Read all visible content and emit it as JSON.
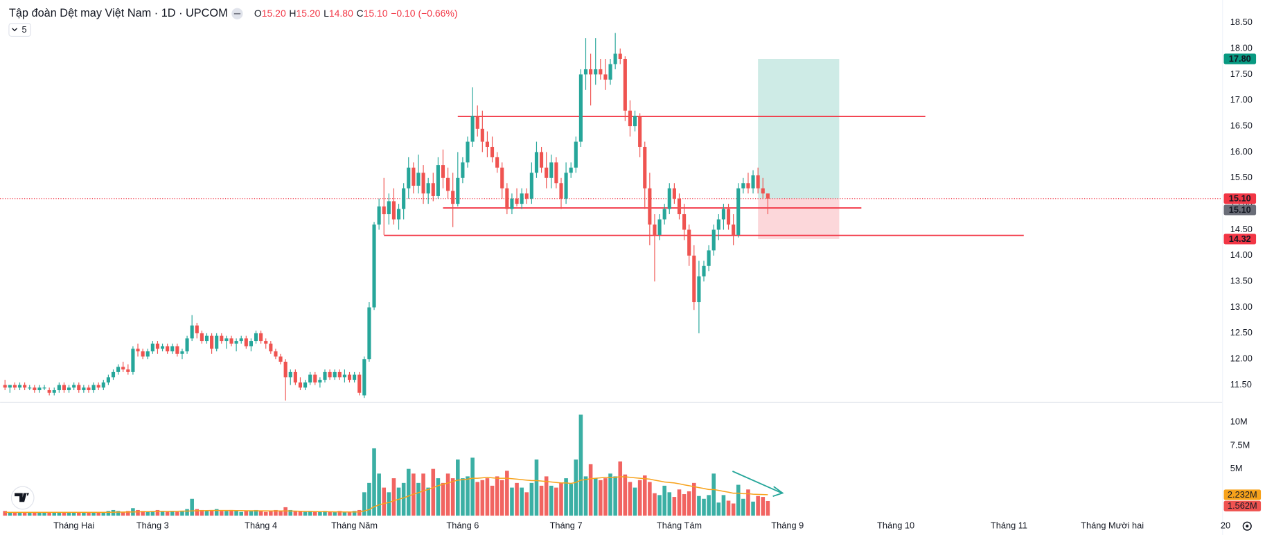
{
  "chart_data": {
    "type": "candlestick",
    "title": "Tập đoàn Dệt may Việt Nam · 1D · UPCOM",
    "ohlc_legend": [
      [
        "O",
        "15.20"
      ],
      [
        "H",
        "15.20"
      ],
      [
        "L",
        "14.80"
      ],
      [
        "C",
        "15.10"
      ]
    ],
    "change_label": "−0.10 (−0.66%)",
    "indicator_count": "5",
    "up_color": "#26a69a",
    "down_color": "#ef5350",
    "ma_color": "#f7a21b",
    "grid": false,
    "xlim": [
      -1,
      256
    ],
    "xticks": [
      {
        "value": 14,
        "label": "Tháng Hai"
      },
      {
        "value": 30,
        "label": "Tháng 3"
      },
      {
        "value": 52,
        "label": "Tháng 4"
      },
      {
        "value": 71,
        "label": "Tháng Năm"
      },
      {
        "value": 93,
        "label": "Tháng 6"
      },
      {
        "value": 114,
        "label": "Tháng 7"
      },
      {
        "value": 137,
        "label": "Tháng Tám"
      },
      {
        "value": 159,
        "label": "Tháng 9"
      },
      {
        "value": 181,
        "label": "Tháng 10"
      },
      {
        "value": 204,
        "label": "Tháng 11"
      },
      {
        "value": 225,
        "label": "Tháng Mười hai"
      },
      {
        "value": 248,
        "label": "20"
      }
    ],
    "ylim": [
      11.19,
      18.86
    ],
    "yticks": [
      {
        "value": 11.5,
        "label": "11.50"
      },
      {
        "value": 12,
        "label": "12.00"
      },
      {
        "value": 12.5,
        "label": "12.50"
      },
      {
        "value": 13,
        "label": "13.00"
      },
      {
        "value": 13.5,
        "label": "13.50"
      },
      {
        "value": 14,
        "label": "14.00"
      },
      {
        "value": 14.5,
        "label": "14.50"
      },
      {
        "value": 15,
        "label": "15.00"
      },
      {
        "value": 15.5,
        "label": "15.50"
      },
      {
        "value": 16,
        "label": "16.00"
      },
      {
        "value": 16.5,
        "label": "16.50"
      },
      {
        "value": 17,
        "label": "17.00"
      },
      {
        "value": 17.5,
        "label": "17.50"
      },
      {
        "value": 18,
        "label": "18.00"
      },
      {
        "value": 18.5,
        "label": "18.50"
      }
    ],
    "vlim": [
      0,
      12
    ],
    "vticks": [
      {
        "value": 5,
        "label": "5M"
      },
      {
        "value": 7.5,
        "label": "7.5M"
      },
      {
        "value": 10,
        "label": "10M"
      }
    ],
    "price_labels": [
      {
        "value": 17.8,
        "label": "17.80",
        "color": "#089981"
      },
      {
        "value": 15.1,
        "label": "15.10",
        "color": "#f23645"
      },
      {
        "value": 15.1,
        "label": "15.10",
        "color": "#6a6d78"
      },
      {
        "value": 14.32,
        "label": "14.32",
        "color": "#f23645"
      }
    ],
    "volume_label": "1.562M",
    "volume_ma_label": "2.232M",
    "levels": [
      {
        "price": 16.69,
        "from": 92,
        "to": 187
      },
      {
        "price": 14.92,
        "from": 89,
        "to": 174
      },
      {
        "price": 14.39,
        "from": 77,
        "to": 207
      }
    ],
    "position": {
      "from": 153,
      "to": 169.5,
      "target": 17.8,
      "entry": 15.1,
      "stop": 14.32
    },
    "candles": [
      [
        11.5,
        11.6,
        11.4,
        11.45
      ],
      [
        11.45,
        11.5,
        11.35,
        11.5
      ],
      [
        11.5,
        11.55,
        11.4,
        11.45
      ],
      [
        11.45,
        11.55,
        11.4,
        11.5
      ],
      [
        11.5,
        11.55,
        11.4,
        11.45
      ],
      [
        11.45,
        11.5,
        11.4,
        11.45
      ],
      [
        11.45,
        11.5,
        11.35,
        11.4
      ],
      [
        11.4,
        11.5,
        11.35,
        11.45
      ],
      [
        11.45,
        11.5,
        11.4,
        11.45
      ],
      [
        11.4,
        11.45,
        11.3,
        11.35
      ],
      [
        11.35,
        11.45,
        11.3,
        11.4
      ],
      [
        11.4,
        11.55,
        11.35,
        11.5
      ],
      [
        11.5,
        11.55,
        11.35,
        11.4
      ],
      [
        11.4,
        11.5,
        11.35,
        11.45
      ],
      [
        11.45,
        11.55,
        11.4,
        11.5
      ],
      [
        11.5,
        11.55,
        11.35,
        11.4
      ],
      [
        11.4,
        11.5,
        11.35,
        11.45
      ],
      [
        11.45,
        11.5,
        11.35,
        11.4
      ],
      [
        11.4,
        11.55,
        11.35,
        11.5
      ],
      [
        11.5,
        11.55,
        11.4,
        11.45
      ],
      [
        11.45,
        11.6,
        11.4,
        11.55
      ],
      [
        11.55,
        11.7,
        11.5,
        11.65
      ],
      [
        11.65,
        11.8,
        11.6,
        11.75
      ],
      [
        11.75,
        11.9,
        11.7,
        11.85
      ],
      [
        11.85,
        11.95,
        11.75,
        11.8
      ],
      [
        11.8,
        11.9,
        11.7,
        11.75
      ],
      [
        11.75,
        12.25,
        11.7,
        12.2
      ],
      [
        12.2,
        12.3,
        12.05,
        12.15
      ],
      [
        12.15,
        12.2,
        12.0,
        12.05
      ],
      [
        12.05,
        12.2,
        12.0,
        12.15
      ],
      [
        12.15,
        12.35,
        12.1,
        12.3
      ],
      [
        12.3,
        12.35,
        12.1,
        12.2
      ],
      [
        12.2,
        12.3,
        12.15,
        12.25
      ],
      [
        12.25,
        12.3,
        12.1,
        12.15
      ],
      [
        12.15,
        12.3,
        12.1,
        12.25
      ],
      [
        12.25,
        12.3,
        12.05,
        12.1
      ],
      [
        12.1,
        12.2,
        12.0,
        12.15
      ],
      [
        12.15,
        12.45,
        12.1,
        12.4
      ],
      [
        12.4,
        12.85,
        12.35,
        12.65
      ],
      [
        12.65,
        12.7,
        12.4,
        12.5
      ],
      [
        12.5,
        12.55,
        12.3,
        12.35
      ],
      [
        12.35,
        12.5,
        12.3,
        12.45
      ],
      [
        12.45,
        12.5,
        12.1,
        12.2
      ],
      [
        12.2,
        12.5,
        12.15,
        12.45
      ],
      [
        12.45,
        12.5,
        12.3,
        12.35
      ],
      [
        12.35,
        12.45,
        12.2,
        12.4
      ],
      [
        12.4,
        12.45,
        12.25,
        12.3
      ],
      [
        12.3,
        12.4,
        12.15,
        12.35
      ],
      [
        12.35,
        12.45,
        12.3,
        12.4
      ],
      [
        12.4,
        12.45,
        12.2,
        12.25
      ],
      [
        12.25,
        12.4,
        12.15,
        12.35
      ],
      [
        12.35,
        12.55,
        12.3,
        12.5
      ],
      [
        12.5,
        12.55,
        12.3,
        12.35
      ],
      [
        12.35,
        12.4,
        12.2,
        12.3
      ],
      [
        12.3,
        12.35,
        12.1,
        12.15
      ],
      [
        12.15,
        12.2,
        12.0,
        12.05
      ],
      [
        12.05,
        12.1,
        11.9,
        11.95
      ],
      [
        11.95,
        12.0,
        11.2,
        11.65
      ],
      [
        11.65,
        11.8,
        11.5,
        11.75
      ],
      [
        11.75,
        11.8,
        11.5,
        11.55
      ],
      [
        11.55,
        11.65,
        11.4,
        11.45
      ],
      [
        11.45,
        11.6,
        11.4,
        11.55
      ],
      [
        11.55,
        11.75,
        11.5,
        11.7
      ],
      [
        11.7,
        11.75,
        11.5,
        11.55
      ],
      [
        11.55,
        11.65,
        11.45,
        11.6
      ],
      [
        11.6,
        11.8,
        11.55,
        11.75
      ],
      [
        11.75,
        11.8,
        11.6,
        11.65
      ],
      [
        11.65,
        11.8,
        11.6,
        11.75
      ],
      [
        11.75,
        11.8,
        11.6,
        11.65
      ],
      [
        11.65,
        11.8,
        11.55,
        11.7
      ],
      [
        11.7,
        11.75,
        11.55,
        11.6
      ],
      [
        11.6,
        11.75,
        11.55,
        11.7
      ],
      [
        11.7,
        11.75,
        11.3,
        11.35
      ],
      [
        11.3,
        12.05,
        11.25,
        12.0
      ],
      [
        12.0,
        13.1,
        11.95,
        13.0
      ],
      [
        13.0,
        14.65,
        12.95,
        14.6
      ],
      [
        14.6,
        15.1,
        14.5,
        14.95
      ],
      [
        14.95,
        15.5,
        14.4,
        14.8
      ],
      [
        14.8,
        15.2,
        14.6,
        15.05
      ],
      [
        15.05,
        15.3,
        14.6,
        14.7
      ],
      [
        14.7,
        15.0,
        14.5,
        14.9
      ],
      [
        14.9,
        15.4,
        14.7,
        15.3
      ],
      [
        15.3,
        15.9,
        15.1,
        15.7
      ],
      [
        15.7,
        15.8,
        15.2,
        15.35
      ],
      [
        15.35,
        15.95,
        15.2,
        15.6
      ],
      [
        15.6,
        15.75,
        15.0,
        15.2
      ],
      [
        15.2,
        15.5,
        15.0,
        15.4
      ],
      [
        15.4,
        15.6,
        15.05,
        15.15
      ],
      [
        15.15,
        15.9,
        15.1,
        15.75
      ],
      [
        15.75,
        16.05,
        15.3,
        15.5
      ],
      [
        15.5,
        15.7,
        15.1,
        15.25
      ],
      [
        15.25,
        15.6,
        14.55,
        15.0
      ],
      [
        15.0,
        16.0,
        14.95,
        15.5
      ],
      [
        15.5,
        15.9,
        15.4,
        15.8
      ],
      [
        15.8,
        16.3,
        15.7,
        16.2
      ],
      [
        16.2,
        17.25,
        16.1,
        16.7
      ],
      [
        16.7,
        16.9,
        16.3,
        16.45
      ],
      [
        16.45,
        16.8,
        16.0,
        16.2
      ],
      [
        16.2,
        16.4,
        15.9,
        16.1
      ],
      [
        16.1,
        16.3,
        15.8,
        15.9
      ],
      [
        15.9,
        16.0,
        15.6,
        15.7
      ],
      [
        15.7,
        15.8,
        15.1,
        15.3
      ],
      [
        15.3,
        15.4,
        14.8,
        14.9
      ],
      [
        14.9,
        15.2,
        14.8,
        15.1
      ],
      [
        15.1,
        15.3,
        14.95,
        15.0
      ],
      [
        15.0,
        15.3,
        14.9,
        15.2
      ],
      [
        15.2,
        15.3,
        15.0,
        15.1
      ],
      [
        15.1,
        15.8,
        15.0,
        15.6
      ],
      [
        15.6,
        16.2,
        15.5,
        16.0
      ],
      [
        16.0,
        16.1,
        15.6,
        15.7
      ],
      [
        15.7,
        16.0,
        15.3,
        15.5
      ],
      [
        15.5,
        15.95,
        15.3,
        15.8
      ],
      [
        15.8,
        15.9,
        15.3,
        15.4
      ],
      [
        15.4,
        15.5,
        14.9,
        15.1
      ],
      [
        15.1,
        15.8,
        15.0,
        15.6
      ],
      [
        15.6,
        15.8,
        15.5,
        15.7
      ],
      [
        15.7,
        16.3,
        15.6,
        16.2
      ],
      [
        16.2,
        17.6,
        16.1,
        17.5
      ],
      [
        17.5,
        18.2,
        17.2,
        17.6
      ],
      [
        17.6,
        17.9,
        16.9,
        17.5
      ],
      [
        17.5,
        18.2,
        17.3,
        17.6
      ],
      [
        17.6,
        17.8,
        17.4,
        17.5
      ],
      [
        17.5,
        17.8,
        17.2,
        17.4
      ],
      [
        17.4,
        17.8,
        17.3,
        17.7
      ],
      [
        17.7,
        18.3,
        17.6,
        17.9
      ],
      [
        17.9,
        18.0,
        17.7,
        17.8
      ],
      [
        17.8,
        17.85,
        16.6,
        16.8
      ],
      [
        16.8,
        17.0,
        16.3,
        16.5
      ],
      [
        16.5,
        16.8,
        16.4,
        16.7
      ],
      [
        16.7,
        16.75,
        15.9,
        16.1
      ],
      [
        16.1,
        16.2,
        14.9,
        15.3
      ],
      [
        15.3,
        15.6,
        14.2,
        14.6
      ],
      [
        14.6,
        14.8,
        13.5,
        14.4
      ],
      [
        14.4,
        14.8,
        14.3,
        14.7
      ],
      [
        14.7,
        15.0,
        14.6,
        14.9
      ],
      [
        14.9,
        15.4,
        14.8,
        15.3
      ],
      [
        15.3,
        15.4,
        15.0,
        15.1
      ],
      [
        15.1,
        15.2,
        14.7,
        14.8
      ],
      [
        14.8,
        15.0,
        14.3,
        14.5
      ],
      [
        14.5,
        14.6,
        13.8,
        14.0
      ],
      [
        14.0,
        14.2,
        12.95,
        13.1
      ],
      [
        13.1,
        13.9,
        12.5,
        13.6
      ],
      [
        13.6,
        13.9,
        13.5,
        13.8
      ],
      [
        13.8,
        14.2,
        13.7,
        14.1
      ],
      [
        14.1,
        14.6,
        14.0,
        14.5
      ],
      [
        14.5,
        14.8,
        14.3,
        14.7
      ],
      [
        14.7,
        15.0,
        14.5,
        14.9
      ],
      [
        14.9,
        15.0,
        14.5,
        14.6
      ],
      [
        14.6,
        14.8,
        14.2,
        14.4
      ],
      [
        14.4,
        15.4,
        14.35,
        15.3
      ],
      [
        15.3,
        15.5,
        15.2,
        15.4
      ],
      [
        15.4,
        15.6,
        15.2,
        15.3
      ],
      [
        15.3,
        15.65,
        15.2,
        15.55
      ],
      [
        15.55,
        15.7,
        15.2,
        15.3
      ],
      [
        15.3,
        15.5,
        15.1,
        15.2
      ],
      [
        15.2,
        15.2,
        14.8,
        15.1
      ]
    ],
    "volumes": [
      0.5,
      0.4,
      0.3,
      0.4,
      0.3,
      0.3,
      0.4,
      0.3,
      0.3,
      0.4,
      0.4,
      0.3,
      0.4,
      0.3,
      0.3,
      0.4,
      0.3,
      0.3,
      0.4,
      0.4,
      0.3,
      0.5,
      0.6,
      0.5,
      0.4,
      0.5,
      0.8,
      0.6,
      0.5,
      0.4,
      0.5,
      0.6,
      0.5,
      0.4,
      0.5,
      0.4,
      0.5,
      0.7,
      1.8,
      0.7,
      0.6,
      0.5,
      0.6,
      0.7,
      0.5,
      0.5,
      0.6,
      0.5,
      0.4,
      0.5,
      0.5,
      0.6,
      0.5,
      0.4,
      0.5,
      0.6,
      0.5,
      0.9,
      0.6,
      0.5,
      0.5,
      0.4,
      0.5,
      0.4,
      0.4,
      0.5,
      0.4,
      0.4,
      0.5,
      0.4,
      0.4,
      0.5,
      0.6,
      2.5,
      3.5,
      7.2,
      4.5,
      3.0,
      2.5,
      4.0,
      3.0,
      3.5,
      5.0,
      4.5,
      3.5,
      4.5,
      3.0,
      5.0,
      4.0,
      3.5,
      4.5,
      4.0,
      6.0,
      4.0,
      4.2,
      6.2,
      3.6,
      3.8,
      4.0,
      3.2,
      4.2,
      3.8,
      4.8,
      3.0,
      3.5,
      3.0,
      2.5,
      3.5,
      6.0,
      3.2,
      4.2,
      3.2,
      3.0,
      3.5,
      4.0,
      3.4,
      6.0,
      10.8,
      4.2,
      5.5,
      4.0,
      3.8,
      4.0,
      4.5,
      4.2,
      5.8,
      4.4,
      3.6,
      3.0,
      3.8,
      4.3,
      3.6,
      2.4,
      2.2,
      3.2,
      2.5,
      2.0,
      2.8,
      2.3,
      2.6,
      3.5,
      2.1,
      1.8,
      2.2,
      4.5,
      1.4,
      2.2,
      1.6,
      1.3,
      3.3,
      1.8,
      2.8,
      1.5,
      2.1,
      2.0,
      1.562
    ],
    "volume_ma": [
      0.35,
      0.35,
      0.35,
      0.35,
      0.35,
      0.35,
      0.35,
      0.35,
      0.35,
      0.35,
      0.35,
      0.35,
      0.35,
      0.35,
      0.35,
      0.35,
      0.35,
      0.35,
      0.35,
      0.35,
      0.35,
      0.35,
      0.36,
      0.37,
      0.38,
      0.39,
      0.4,
      0.41,
      0.42,
      0.43,
      0.44,
      0.45,
      0.46,
      0.46,
      0.47,
      0.47,
      0.48,
      0.48,
      0.5,
      0.52,
      0.53,
      0.54,
      0.55,
      0.55,
      0.55,
      0.55,
      0.55,
      0.54,
      0.54,
      0.53,
      0.52,
      0.52,
      0.51,
      0.51,
      0.5,
      0.5,
      0.5,
      0.5,
      0.49,
      0.48,
      0.47,
      0.46,
      0.45,
      0.44,
      0.43,
      0.42,
      0.42,
      0.41,
      0.41,
      0.4,
      0.4,
      0.4,
      0.4,
      0.5,
      0.65,
      0.95,
      1.15,
      1.3,
      1.4,
      1.6,
      1.75,
      1.9,
      2.1,
      2.3,
      2.45,
      2.65,
      2.8,
      3.0,
      3.2,
      3.35,
      3.5,
      3.65,
      3.8,
      3.85,
      3.9,
      4.0,
      4.0,
      4.05,
      4.1,
      4.05,
      4.0,
      4.0,
      4.0,
      3.95,
      3.9,
      3.85,
      3.8,
      3.75,
      3.75,
      3.7,
      3.65,
      3.6,
      3.55,
      3.5,
      3.5,
      3.45,
      3.55,
      3.8,
      3.85,
      3.95,
      4.0,
      4.05,
      4.1,
      4.1,
      4.1,
      4.15,
      4.15,
      4.1,
      4.05,
      4.0,
      3.95,
      3.9,
      3.8,
      3.7,
      3.6,
      3.55,
      3.5,
      3.4,
      3.3,
      3.2,
      3.1,
      3.0,
      2.9,
      2.8,
      2.8,
      2.7,
      2.6,
      2.5,
      2.4,
      2.4,
      2.35,
      2.35,
      2.3,
      2.27,
      2.25,
      2.232
    ]
  }
}
